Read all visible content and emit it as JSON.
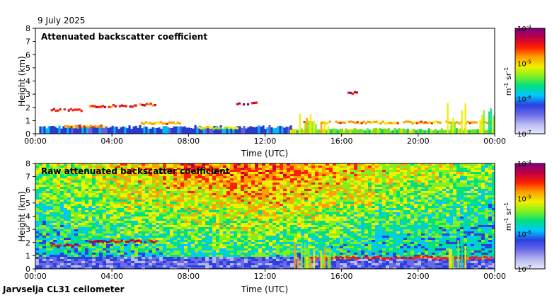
{
  "page": {
    "date": "9 July 2025",
    "footer": "Jarvselja CL31 ceilometer"
  },
  "colors": {
    "scale": [
      "#e8e8ff",
      "#b8b8f0",
      "#6a6ae8",
      "#2a40e0",
      "#00c8ff",
      "#00e080",
      "#80f020",
      "#f0f000",
      "#ffa000",
      "#ff2000",
      "#c00040",
      "#800080"
    ]
  },
  "chart_data": [
    {
      "type": "heatmap",
      "title": "Attenuated backscatter coefficient",
      "xlabel": "Time (UTC)",
      "ylabel": "Height (km)",
      "xlim": [
        0,
        24
      ],
      "ylim": [
        0,
        8
      ],
      "x_ticks": [
        "00:00",
        "04:00",
        "08:00",
        "12:00",
        "16:00",
        "20:00",
        "00:00"
      ],
      "y_ticks": [
        "0",
        "1",
        "2",
        "3",
        "4",
        "5",
        "6",
        "7",
        "8"
      ],
      "colorbar": {
        "ticks": [
          {
            "base": "10",
            "exp": "-4"
          },
          {
            "base": "10",
            "exp": "-5"
          },
          {
            "base": "10",
            "exp": "-6"
          },
          {
            "base": "10",
            "exp": "-7"
          }
        ],
        "unit_m": "m",
        "unit_m_exp": "-1",
        "unit_sr": "sr",
        "unit_sr_exp": "-1"
      },
      "features": [
        {
          "kind": "layer",
          "t_start": 0.2,
          "t_end": 13.5,
          "h_bottom": 0.0,
          "h_top": 0.6,
          "level": 3
        },
        {
          "kind": "layer",
          "t_start": 13.3,
          "t_end": 24.0,
          "h_bottom": 0.0,
          "h_top": 0.4,
          "level": 6
        },
        {
          "kind": "cloud",
          "t_start": 0.8,
          "t_end": 2.4,
          "h": 1.8,
          "level": 9
        },
        {
          "kind": "cloud",
          "t_start": 2.8,
          "t_end": 5.2,
          "h": 2.1,
          "level": 9
        },
        {
          "kind": "cloud",
          "t_start": 5.2,
          "t_end": 6.3,
          "h": 2.2,
          "level": 9
        },
        {
          "kind": "cloud",
          "t_start": 1.5,
          "t_end": 3.5,
          "h": 0.55,
          "level": 8
        },
        {
          "kind": "cloud",
          "t_start": 5.5,
          "t_end": 7.5,
          "h": 0.8,
          "level": 8
        },
        {
          "kind": "cloud",
          "t_start": 8.5,
          "t_end": 10.5,
          "h": 0.45,
          "level": 7
        },
        {
          "kind": "cloud",
          "t_start": 10.5,
          "t_end": 11.5,
          "h": 2.3,
          "level": 10
        },
        {
          "kind": "cloud",
          "t_start": 16.3,
          "t_end": 16.8,
          "h": 3.1,
          "level": 10
        },
        {
          "kind": "cloud",
          "t_start": 14.0,
          "t_end": 23.8,
          "h": 0.85,
          "level": 8
        },
        {
          "kind": "column",
          "t_start": 13.5,
          "t_end": 15.5,
          "h_top": 1.6,
          "level": 7
        },
        {
          "kind": "column",
          "t_start": 21.5,
          "t_end": 22.5,
          "h_top": 2.4,
          "level": 6
        },
        {
          "kind": "column",
          "t_start": 23.2,
          "t_end": 24.0,
          "h_top": 2.1,
          "level": 6
        }
      ]
    },
    {
      "type": "heatmap",
      "title": "Raw attenuated backscatter coefficient",
      "xlabel": "Time (UTC)",
      "ylabel": "Height (km)",
      "xlim": [
        0,
        24
      ],
      "ylim": [
        0,
        8
      ],
      "x_ticks": [
        "00:00",
        "04:00",
        "08:00",
        "12:00",
        "16:00",
        "20:00",
        "00:00"
      ],
      "y_ticks": [
        "0",
        "1",
        "2",
        "3",
        "4",
        "5",
        "6",
        "7",
        "8"
      ],
      "colorbar": {
        "ticks": [
          {
            "base": "10",
            "exp": "-4"
          },
          {
            "base": "10",
            "exp": "-5"
          },
          {
            "base": "10",
            "exp": "-6"
          },
          {
            "base": "10",
            "exp": "-7"
          }
        ],
        "unit_m": "m",
        "unit_m_exp": "-1",
        "unit_sr": "sr",
        "unit_sr_exp": "-1"
      },
      "features": [
        {
          "kind": "noise_gradient",
          "low_level": 3,
          "high_level": 9,
          "peak_time": 11.0
        },
        {
          "kind": "cloud",
          "t_start": 0.8,
          "t_end": 2.4,
          "h": 1.8,
          "level": 10
        },
        {
          "kind": "cloud",
          "t_start": 2.8,
          "t_end": 6.3,
          "h": 2.1,
          "level": 10
        },
        {
          "kind": "cloud",
          "t_start": 14.0,
          "t_end": 23.8,
          "h": 0.85,
          "level": 9
        },
        {
          "kind": "column",
          "t_start": 13.5,
          "t_end": 15.5,
          "h_top": 2.0,
          "level": 7
        },
        {
          "kind": "column",
          "t_start": 21.5,
          "t_end": 22.5,
          "h_top": 2.4,
          "level": 6
        }
      ]
    }
  ]
}
